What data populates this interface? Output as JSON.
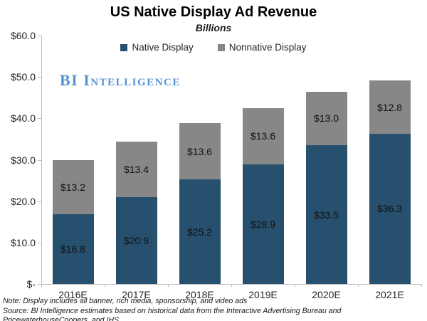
{
  "header": {
    "title": "US Native Display Ad Revenue",
    "subtitle": "Billions"
  },
  "watermark": "BI Intelligence",
  "chart_data": {
    "type": "bar",
    "stacked": true,
    "title": "US Native Display Ad Revenue",
    "subtitle": "Billions",
    "categories": [
      "2016E",
      "2017E",
      "2018E",
      "2019E",
      "2020E",
      "2021E"
    ],
    "series": [
      {
        "name": "Native Display",
        "color": "#27506f",
        "values": [
          16.8,
          20.9,
          25.2,
          28.9,
          33.5,
          36.3
        ],
        "display_labels": [
          "$16.8",
          "$20.9",
          "$25.2",
          "$28.9",
          "$33.5",
          "$36.3"
        ]
      },
      {
        "name": "Nonnative Display",
        "color": "#878787",
        "values": [
          13.2,
          13.4,
          13.6,
          13.6,
          13.0,
          12.8
        ],
        "display_labels": [
          "$13.2",
          "$13.4",
          "$13.6",
          "$13.6",
          "$13.0",
          "$12.8"
        ]
      }
    ],
    "y_axis": {
      "min": 0,
      "max": 60,
      "tick_step": 10,
      "tick_labels": [
        "$-",
        "$10.0",
        "$20.0",
        "$30.0",
        "$40.0",
        "$50.0",
        "$60.0"
      ]
    },
    "grid": false,
    "legend_position": "top"
  },
  "notes": {
    "note": "Note: Display includes all banner, rich media, sponsorship, and video ads",
    "source": "Source: BI Intelligence estimates based on historical data from the Interactive Advertising Bureau and PricewaterhouseCoopers, and IHS"
  },
  "colors": {
    "axis": "#bfbfbf",
    "watermark": "#5593d4"
  }
}
